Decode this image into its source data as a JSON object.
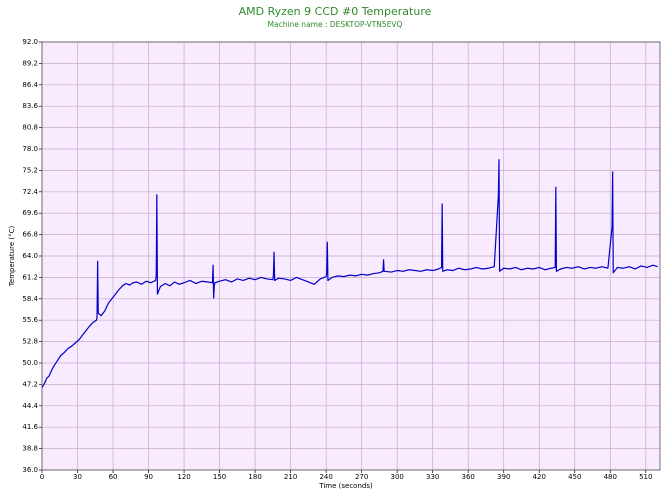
{
  "chart_data": {
    "type": "line",
    "title": "AMD Ryzen 9 CCD #0 Temperature",
    "subtitle": "Machine name : DESKTOP-VTN5EVQ",
    "xlabel": "Time (seconds)",
    "ylabel": "Temperature (°C)",
    "color": "#0000c8",
    "background": "#f8eaff",
    "grid": true,
    "xlim": [
      0,
      522
    ],
    "ylim": [
      36,
      92
    ],
    "xticks": [
      0,
      30,
      60,
      90,
      120,
      150,
      180,
      210,
      240,
      270,
      300,
      330,
      360,
      390,
      420,
      450,
      480,
      510
    ],
    "yticks": [
      {
        "value": 92,
        "label": "92.0"
      },
      89.2,
      86.4,
      83.6,
      80.8,
      {
        "value": 78,
        "label": "78.0"
      },
      75.2,
      72.4,
      69.6,
      66.8,
      {
        "value": 64,
        "label": "64.0"
      },
      61.2,
      58.4,
      55.6,
      52.8,
      {
        "value": 50,
        "label": "50.0"
      },
      47.2,
      44.4,
      41.6,
      38.8,
      {
        "value": 36,
        "label": "36.0"
      }
    ],
    "x": [
      0,
      2,
      4,
      6,
      8,
      10,
      13,
      16,
      19,
      22,
      25,
      28,
      31,
      34,
      37,
      40,
      43,
      46,
      46.5,
      47,
      47.5,
      50,
      53,
      56,
      59,
      62,
      65,
      68,
      71,
      74,
      77,
      80,
      84,
      88,
      92,
      96,
      96.5,
      97,
      97.5,
      100,
      104,
      108,
      112,
      116,
      120,
      125,
      130,
      135,
      140,
      144,
      144.5,
      145,
      145.5,
      146,
      150,
      155,
      160,
      165,
      170,
      175,
      180,
      185,
      190,
      195,
      195.5,
      196,
      196.5,
      200,
      205,
      210,
      215,
      220,
      225,
      230,
      235,
      240,
      240.5,
      241,
      241.5,
      245,
      250,
      255,
      260,
      265,
      270,
      275,
      280,
      285,
      288,
      288.5,
      289,
      295,
      300,
      305,
      310,
      315,
      320,
      325,
      330,
      335,
      337.5,
      338,
      338.5,
      342,
      347,
      352,
      357,
      362,
      367,
      372,
      377,
      382,
      385.5,
      386,
      386.5,
      390,
      395,
      400,
      405,
      410,
      415,
      420,
      425,
      430,
      433.5,
      434,
      434.5,
      438,
      443,
      448,
      453,
      458,
      463,
      468,
      473,
      478,
      481.5,
      482,
      482.5,
      486,
      491,
      496,
      501,
      506,
      511,
      516,
      520
    ],
    "values": [
      46.8,
      47.3,
      48.0,
      48.3,
      49.0,
      49.6,
      50.3,
      51.0,
      51.4,
      51.9,
      52.2,
      52.6,
      53.0,
      53.6,
      54.2,
      54.8,
      55.3,
      55.6,
      56.0,
      63.3,
      56.5,
      56.2,
      56.8,
      57.8,
      58.4,
      59.0,
      59.6,
      60.1,
      60.4,
      60.2,
      60.5,
      60.6,
      60.3,
      60.7,
      60.5,
      60.8,
      61.5,
      72.0,
      59.0,
      60.0,
      60.4,
      60.1,
      60.6,
      60.3,
      60.5,
      60.8,
      60.4,
      60.7,
      60.6,
      60.5,
      62.8,
      58.5,
      60.0,
      60.5,
      60.7,
      60.9,
      60.6,
      61.0,
      60.8,
      61.1,
      60.9,
      61.2,
      61.0,
      60.9,
      61.5,
      64.5,
      60.8,
      61.1,
      61.0,
      60.8,
      61.2,
      60.9,
      60.6,
      60.3,
      61.0,
      61.3,
      61.8,
      65.8,
      60.8,
      61.2,
      61.4,
      61.3,
      61.5,
      61.4,
      61.6,
      61.5,
      61.7,
      61.8,
      62.0,
      63.5,
      62.0,
      61.9,
      62.1,
      62.0,
      62.2,
      62.1,
      62.0,
      62.2,
      62.1,
      62.3,
      62.5,
      70.8,
      62.0,
      62.2,
      62.1,
      62.4,
      62.2,
      62.3,
      62.5,
      62.3,
      62.4,
      62.6,
      72.0,
      76.6,
      62.0,
      62.4,
      62.3,
      62.5,
      62.2,
      62.4,
      62.3,
      62.5,
      62.2,
      62.4,
      62.5,
      73.0,
      62.0,
      62.3,
      62.5,
      62.4,
      62.6,
      62.3,
      62.5,
      62.4,
      62.6,
      62.4,
      67.8,
      75.0,
      61.8,
      62.5,
      62.4,
      62.6,
      62.3,
      62.7,
      62.5,
      62.8,
      62.6
    ]
  }
}
